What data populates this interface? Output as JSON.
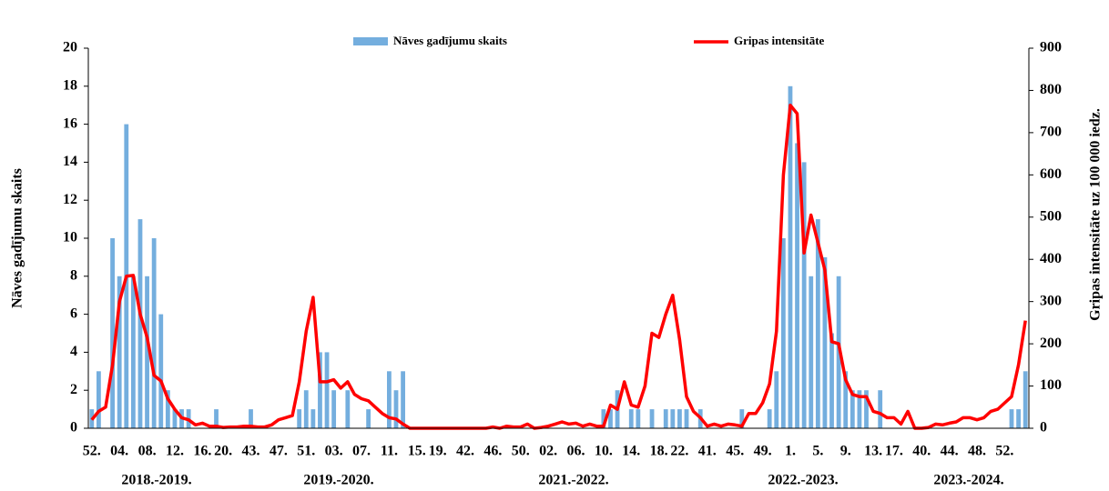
{
  "chart_data": {
    "type": "combo",
    "y_label": "Nāves gadījumu skaits",
    "y2_label": "Gripas intensitāte uz 100 000 iedz.",
    "legend": "top",
    "categories": [
      "52.",
      null,
      null,
      null,
      "04.",
      null,
      null,
      null,
      "08.",
      null,
      null,
      null,
      "12.",
      null,
      null,
      null,
      "16.",
      null,
      null,
      "20.",
      null,
      null,
      null,
      "43.",
      null,
      null,
      null,
      "47.",
      null,
      null,
      null,
      "51.",
      null,
      null,
      null,
      "03.",
      null,
      null,
      null,
      "07.",
      null,
      null,
      null,
      "11.",
      null,
      null,
      null,
      "15.",
      null,
      null,
      "19.",
      null,
      null,
      null,
      "42.",
      null,
      null,
      null,
      "46.",
      null,
      null,
      null,
      "50.",
      null,
      null,
      null,
      "02.",
      null,
      null,
      null,
      "06.",
      null,
      null,
      null,
      "10.",
      null,
      null,
      null,
      "14.",
      null,
      null,
      null,
      "18.",
      null,
      null,
      "22.",
      null,
      null,
      null,
      "41.",
      null,
      null,
      null,
      "45.",
      null,
      null,
      null,
      "49.",
      null,
      null,
      null,
      "1.",
      null,
      null,
      null,
      "5.",
      null,
      null,
      null,
      "9.",
      null,
      null,
      null,
      "13.",
      null,
      null,
      "17.",
      null,
      null,
      null,
      "40.",
      null,
      null,
      null,
      "44.",
      null,
      null,
      null,
      "48.",
      null,
      null,
      null,
      "52.",
      null,
      null,
      null
    ],
    "groups": [
      "2018.-2019.",
      "2019.-2020.",
      "2021.-2022.",
      "2022.-2023.",
      "2023.-2024."
    ],
    "series": [
      {
        "name": "Nāves gadījumu skaits",
        "type": "bar",
        "color": "#74aede",
        "values": [
          1,
          3,
          0,
          10,
          8,
          16,
          8,
          11,
          8,
          10,
          6,
          2,
          1,
          1,
          1,
          0,
          0,
          0,
          1,
          0,
          0,
          0,
          0,
          1,
          0,
          0,
          0,
          0,
          0,
          0,
          1,
          2,
          1,
          4,
          4,
          2,
          0,
          2,
          0,
          0,
          1,
          0,
          0,
          3,
          2,
          3,
          0,
          0,
          0,
          0,
          0,
          0,
          0,
          0,
          0,
          0,
          0,
          0,
          0,
          0,
          0,
          0,
          0,
          0,
          0,
          0,
          0,
          0,
          0,
          0,
          0,
          0,
          0,
          0,
          1,
          1,
          2,
          0,
          1,
          1,
          0,
          1,
          0,
          1,
          1,
          1,
          1,
          0,
          1,
          0,
          0,
          0,
          0,
          0,
          1,
          0,
          0,
          0,
          1,
          3,
          10,
          18,
          15,
          14,
          8,
          11,
          9,
          5,
          8,
          3,
          2,
          2,
          2,
          0,
          2,
          0,
          0,
          0,
          0,
          0,
          0,
          0,
          0,
          0,
          0,
          0,
          0,
          0,
          0,
          0,
          0,
          0,
          0,
          1,
          1,
          3
        ]
      },
      {
        "name": "Gripas intensitāte",
        "type": "line",
        "axis": "y2",
        "color": "#ff0000",
        "values": [
          20,
          40,
          50,
          150,
          300,
          360,
          362,
          270,
          215,
          125,
          112,
          70,
          45,
          25,
          20,
          8,
          12,
          5,
          5,
          2,
          3,
          3,
          5,
          5,
          3,
          3,
          8,
          20,
          25,
          30,
          110,
          230,
          310,
          110,
          110,
          115,
          95,
          110,
          80,
          70,
          65,
          50,
          35,
          25,
          22,
          10,
          0,
          0,
          0,
          0,
          0,
          0,
          0,
          0,
          0,
          0,
          0,
          0,
          3,
          0,
          5,
          3,
          3,
          10,
          0,
          2,
          5,
          10,
          15,
          10,
          12,
          5,
          10,
          5,
          5,
          55,
          45,
          110,
          55,
          50,
          100,
          225,
          215,
          270,
          315,
          210,
          75,
          40,
          25,
          5,
          10,
          5,
          10,
          8,
          5,
          35,
          35,
          60,
          105,
          230,
          600,
          765,
          745,
          415,
          505,
          440,
          375,
          205,
          200,
          115,
          80,
          75,
          75,
          40,
          35,
          25,
          25,
          10,
          40,
          0,
          0,
          2,
          10,
          8,
          12,
          15,
          25,
          25,
          20,
          25,
          40,
          45,
          60,
          75,
          150,
          255
        ]
      }
    ],
    "ylim": [
      0,
      20
    ],
    "yticks": [
      0,
      2,
      4,
      6,
      8,
      10,
      12,
      14,
      16,
      18,
      20
    ],
    "y2lim": [
      0,
      900
    ],
    "y2ticks": [
      0,
      100,
      200,
      300,
      400,
      500,
      600,
      700,
      800,
      900
    ]
  }
}
